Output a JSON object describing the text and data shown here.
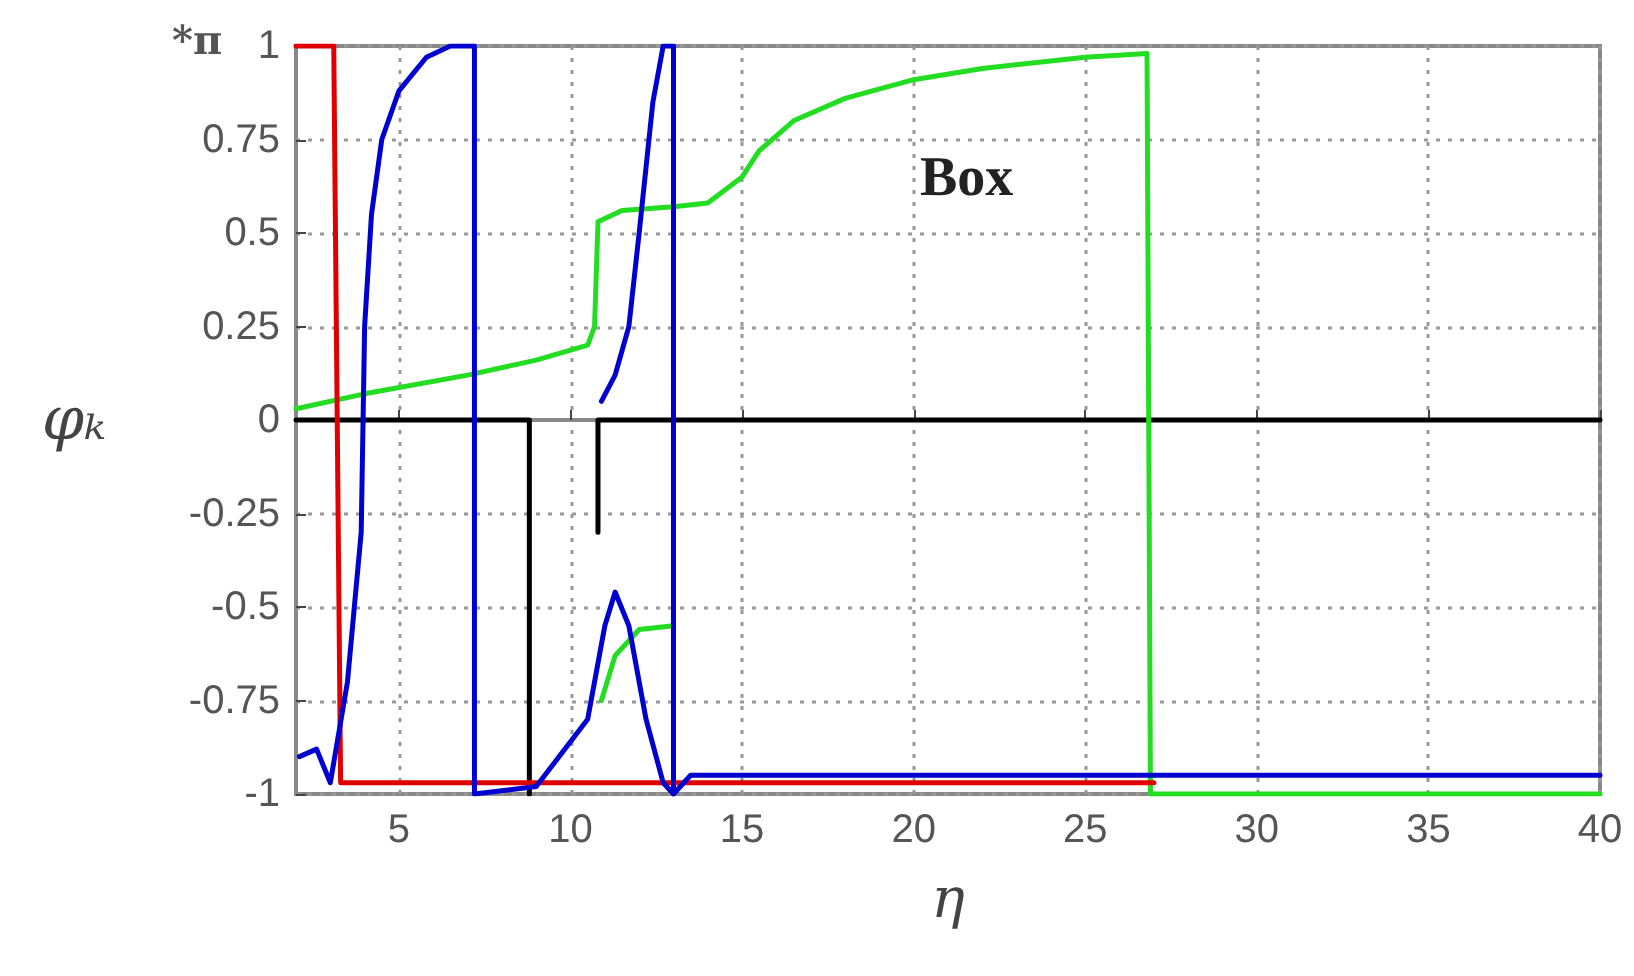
{
  "chart_data": {
    "type": "line",
    "xlabel": "η",
    "ylabel": "φₖ",
    "annotations": [
      "*π",
      "Box"
    ],
    "xlim": [
      2,
      40
    ],
    "xticks": [
      5,
      10,
      15,
      20,
      25,
      30,
      35,
      40
    ],
    "ylim": [
      -1,
      1
    ],
    "yticks": [
      -1,
      -0.75,
      -0.5,
      -0.25,
      0,
      0.25,
      0.5,
      0.75,
      1
    ],
    "grid": true,
    "marker": "none",
    "line_style": "solid",
    "series": [
      {
        "color": "#000000",
        "x": [
          2,
          8.8,
          8.8,
          9.5,
          10.8,
          10.8,
          40
        ],
        "values": [
          0,
          0,
          -1,
          null,
          -0.3,
          0,
          0
        ]
      },
      {
        "color": "#22dd22",
        "x": [
          2,
          4,
          7,
          9,
          10.5,
          10.7,
          10.8,
          11.5,
          13,
          14,
          15,
          15.5,
          16.5,
          18,
          20,
          22,
          25,
          26.8,
          26.9,
          40
        ],
        "values": [
          0.03,
          0.07,
          0.12,
          0.16,
          0.2,
          0.25,
          0.53,
          0.56,
          0.57,
          0.58,
          0.65,
          0.72,
          0.8,
          0.86,
          0.91,
          0.94,
          0.97,
          0.98,
          -1,
          -1
        ]
      },
      {
        "color": "#22dd22",
        "x": [
          10.9,
          11.3,
          12,
          13
        ],
        "values": [
          -0.75,
          -0.63,
          -0.56,
          -0.55
        ]
      },
      {
        "color": "#e00000",
        "x": [
          2,
          3.1,
          3.3,
          27
        ],
        "values": [
          1,
          1,
          -0.97,
          -0.97
        ]
      },
      {
        "color": "#0000d0",
        "x": [
          2.1,
          2.6,
          3,
          3.5,
          3.9,
          4,
          4.2,
          4.5,
          5,
          5.8,
          6.5,
          7.2,
          7.2,
          9,
          10.5,
          11,
          11.3,
          11.7,
          12.2,
          12.7,
          13
        ],
        "values": [
          -0.9,
          -0.88,
          -0.97,
          -0.7,
          -0.3,
          0.25,
          0.55,
          0.75,
          0.88,
          0.97,
          1,
          1,
          -1,
          -0.98,
          -0.8,
          -0.55,
          -0.46,
          -0.55,
          -0.8,
          -0.97,
          -1
        ]
      },
      {
        "color": "#0000d0",
        "x": [
          10.9,
          11.3,
          11.7,
          12,
          12.4,
          12.7,
          13,
          13,
          13.5,
          40
        ],
        "values": [
          0.05,
          0.12,
          0.25,
          0.5,
          0.85,
          1,
          1,
          -1,
          -0.95,
          -0.95
        ]
      }
    ]
  }
}
